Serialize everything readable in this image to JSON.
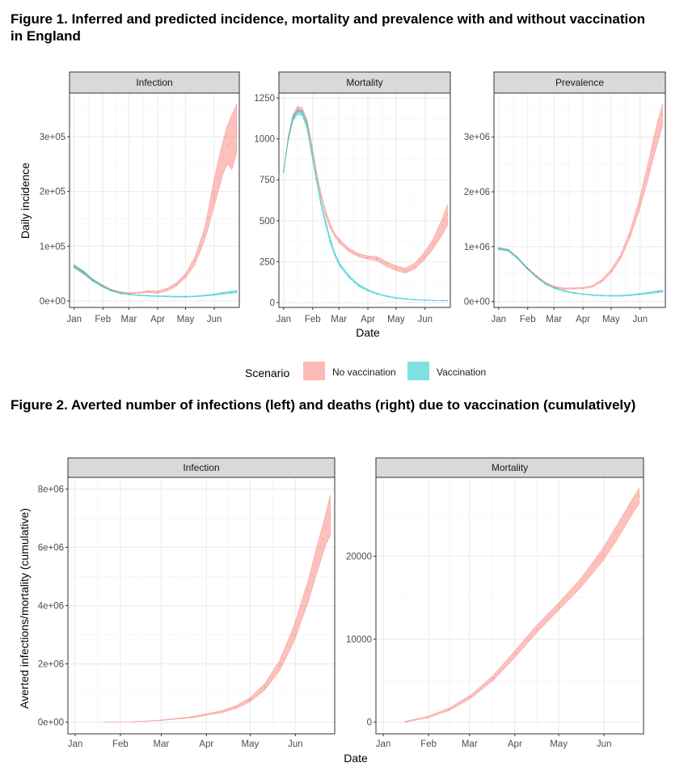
{
  "figure1": {
    "title": "Figure 1. Inferred and predicted incidence, mortality and prevalence with and without vaccination in England",
    "xlabel": "Date",
    "ylabel": "Daily incidence",
    "legend": {
      "title": "Scenario",
      "items": [
        "No vaccination",
        "Vaccination"
      ]
    }
  },
  "figure2": {
    "title": "Figure 2. Averted number of infections (left) and deaths (right) due to vaccination (cumulatively)",
    "xlabel": "Date",
    "ylabel": "Averted infections/mortality (cumulative)"
  },
  "colors": {
    "no_vaccination": "#F8766D",
    "vaccination": "#00BFC4",
    "strip": "#d9d9d9",
    "grid": "#ebebeb"
  },
  "chart_data": [
    {
      "type": "area",
      "panel": "Infection",
      "x_ticks": [
        "Jan",
        "Feb",
        "Mar",
        "Apr",
        "May",
        "Jun"
      ],
      "x_tick_days": [
        0,
        31,
        59,
        90,
        120,
        151
      ],
      "x_range_days": [
        -5,
        178
      ],
      "y_ticks": [
        0,
        100000,
        200000,
        300000
      ],
      "y_tick_labels": [
        "0e+00",
        "1e+05",
        "2e+05",
        "3e+05"
      ],
      "ylim": [
        -12000,
        380000
      ],
      "series": [
        {
          "name": "No vaccination",
          "x": [
            0,
            10,
            20,
            30,
            40,
            50,
            60,
            70,
            80,
            90,
            100,
            110,
            120,
            130,
            140,
            145,
            150,
            155,
            160,
            165,
            170,
            175
          ],
          "lower": [
            60000,
            49000,
            36000,
            26000,
            18000,
            14000,
            13000,
            14000,
            15000,
            14000,
            18000,
            27000,
            42000,
            66000,
            108000,
            135000,
            168000,
            198000,
            230000,
            250000,
            240000,
            270000
          ],
          "upper": [
            66000,
            55000,
            40000,
            30000,
            21000,
            17000,
            15000,
            16000,
            19000,
            18000,
            23000,
            33000,
            50000,
            80000,
            130000,
            170000,
            215000,
            255000,
            290000,
            320000,
            340000,
            360000
          ]
        },
        {
          "name": "Vaccination",
          "x": [
            0,
            10,
            20,
            30,
            40,
            50,
            60,
            70,
            80,
            90,
            100,
            110,
            120,
            130,
            140,
            150,
            160,
            170,
            175
          ],
          "lower": [
            61000,
            50000,
            36000,
            26000,
            18000,
            13000,
            11000,
            9500,
            8500,
            8000,
            7500,
            7000,
            7000,
            7500,
            8500,
            10000,
            12000,
            14000,
            14500
          ],
          "upper": [
            66000,
            55000,
            40000,
            29000,
            20500,
            15000,
            12500,
            11000,
            10000,
            9500,
            9000,
            8500,
            8500,
            9000,
            10500,
            12500,
            15500,
            18000,
            19000
          ]
        }
      ]
    },
    {
      "type": "area",
      "panel": "Mortality",
      "x_ticks": [
        "Jan",
        "Feb",
        "Mar",
        "Apr",
        "May",
        "Jun"
      ],
      "x_tick_days": [
        0,
        31,
        59,
        90,
        120,
        151
      ],
      "x_range_days": [
        -5,
        178
      ],
      "y_ticks": [
        0,
        250,
        500,
        750,
        1000,
        1250
      ],
      "y_tick_labels": [
        "0",
        "250",
        "500",
        "750",
        "1000",
        "1250"
      ],
      "ylim": [
        -30,
        1280
      ],
      "series": [
        {
          "name": "No vaccination",
          "x": [
            0,
            5,
            10,
            15,
            20,
            25,
            30,
            35,
            40,
            45,
            50,
            55,
            60,
            70,
            80,
            90,
            100,
            110,
            120,
            130,
            140,
            150,
            160,
            170,
            175
          ],
          "lower": [
            800,
            1000,
            1120,
            1170,
            1160,
            1080,
            940,
            780,
            640,
            530,
            450,
            400,
            360,
            310,
            280,
            265,
            255,
            220,
            195,
            180,
            205,
            260,
            330,
            420,
            470
          ],
          "upper": [
            810,
            1020,
            1150,
            1200,
            1190,
            1120,
            980,
            810,
            670,
            560,
            480,
            420,
            385,
            330,
            300,
            285,
            280,
            250,
            225,
            210,
            240,
            305,
            390,
            520,
            600
          ]
        },
        {
          "name": "Vaccination",
          "x": [
            0,
            5,
            10,
            15,
            20,
            25,
            30,
            35,
            40,
            45,
            50,
            55,
            60,
            70,
            80,
            90,
            100,
            110,
            120,
            130,
            140,
            150,
            160,
            170,
            175
          ],
          "lower": [
            790,
            990,
            1110,
            1150,
            1140,
            1060,
            900,
            740,
            590,
            470,
            360,
            280,
            220,
            150,
            100,
            70,
            50,
            36,
            26,
            20,
            16,
            13,
            12,
            11,
            11
          ],
          "upper": [
            805,
            1010,
            1140,
            1180,
            1170,
            1100,
            940,
            770,
            620,
            500,
            390,
            300,
            240,
            165,
            112,
            80,
            57,
            42,
            31,
            24,
            19,
            16,
            14,
            13,
            13
          ]
        }
      ]
    },
    {
      "type": "area",
      "panel": "Prevalence",
      "x_ticks": [
        "Jan",
        "Feb",
        "Mar",
        "Apr",
        "May",
        "Jun"
      ],
      "x_tick_days": [
        0,
        31,
        59,
        90,
        120,
        151
      ],
      "x_range_days": [
        -5,
        178
      ],
      "y_ticks": [
        0,
        1000000,
        2000000,
        3000000
      ],
      "y_tick_labels": [
        "0e+00",
        "1e+06",
        "2e+06",
        "3e+06"
      ],
      "ylim": [
        -110000,
        3800000
      ],
      "series": [
        {
          "name": "No vaccination",
          "x": [
            0,
            10,
            20,
            30,
            40,
            50,
            60,
            70,
            80,
            90,
            100,
            110,
            120,
            130,
            140,
            150,
            160,
            165,
            170,
            175
          ],
          "lower": [
            950000,
            920000,
            780000,
            600000,
            450000,
            320000,
            250000,
            220000,
            225000,
            230000,
            260000,
            350000,
            520000,
            770000,
            1150000,
            1650000,
            2250000,
            2600000,
            2900000,
            3200000
          ],
          "upper": [
            980000,
            950000,
            810000,
            630000,
            480000,
            350000,
            275000,
            245000,
            250000,
            255000,
            290000,
            395000,
            580000,
            850000,
            1270000,
            1850000,
            2550000,
            2950000,
            3300000,
            3600000
          ]
        },
        {
          "name": "Vaccination",
          "x": [
            0,
            10,
            20,
            30,
            40,
            50,
            60,
            70,
            80,
            90,
            100,
            110,
            120,
            130,
            140,
            150,
            160,
            170,
            175
          ],
          "lower": [
            950000,
            920000,
            780000,
            600000,
            440000,
            310000,
            230000,
            180000,
            150000,
            125000,
            110000,
            100000,
            95000,
            95000,
            105000,
            120000,
            140000,
            160000,
            170000
          ],
          "upper": [
            980000,
            950000,
            810000,
            625000,
            465000,
            330000,
            250000,
            200000,
            165000,
            140000,
            125000,
            115000,
            110000,
            112000,
            125000,
            145000,
            170000,
            195000,
            205000
          ]
        }
      ]
    },
    {
      "type": "area",
      "panel": "Infection",
      "figure": 2,
      "x_ticks": [
        "Jan",
        "Feb",
        "Mar",
        "Apr",
        "May",
        "Jun"
      ],
      "x_tick_days": [
        0,
        31,
        59,
        90,
        120,
        151
      ],
      "x_range_days": [
        -5,
        178
      ],
      "y_ticks": [
        0,
        2000000,
        4000000,
        6000000,
        8000000
      ],
      "y_tick_labels": [
        "0e+00",
        "2e+06",
        "4e+06",
        "6e+06",
        "8e+06"
      ],
      "ylim": [
        -400000,
        8400000
      ],
      "series": [
        {
          "name": "No vaccination",
          "x": [
            20,
            40,
            60,
            80,
            100,
            110,
            120,
            130,
            140,
            150,
            160,
            165,
            170,
            172,
            175
          ],
          "lower": [
            0,
            10000,
            60000,
            150000,
            320000,
            460000,
            700000,
            1100000,
            1750000,
            2750000,
            4150000,
            5000000,
            5800000,
            6100000,
            6400000
          ],
          "upper": [
            2000,
            15000,
            80000,
            190000,
            390000,
            560000,
            840000,
            1320000,
            2100000,
            3300000,
            4900000,
            5900000,
            6800000,
            7200000,
            7800000
          ]
        }
      ]
    },
    {
      "type": "area",
      "panel": "Mortality",
      "figure": 2,
      "x_ticks": [
        "Jan",
        "Feb",
        "Mar",
        "Apr",
        "May",
        "Jun"
      ],
      "x_tick_days": [
        0,
        31,
        59,
        90,
        120,
        151
      ],
      "x_range_days": [
        -5,
        178
      ],
      "y_ticks": [
        0,
        10000,
        20000
      ],
      "y_tick_labels": [
        "0",
        "10000",
        "20000"
      ],
      "ylim": [
        -1400,
        29500
      ],
      "series": [
        {
          "name": "No vaccination",
          "x": [
            15,
            30,
            45,
            60,
            75,
            90,
            105,
            120,
            135,
            150,
            160,
            170,
            175
          ],
          "lower": [
            0,
            500,
            1400,
            2900,
            5000,
            7800,
            10800,
            13500,
            16200,
            19400,
            22000,
            25000,
            26300
          ],
          "upper": [
            100,
            700,
            1700,
            3300,
            5600,
            8600,
            11700,
            14400,
            17300,
            20900,
            23800,
            26800,
            28200
          ]
        }
      ]
    }
  ]
}
